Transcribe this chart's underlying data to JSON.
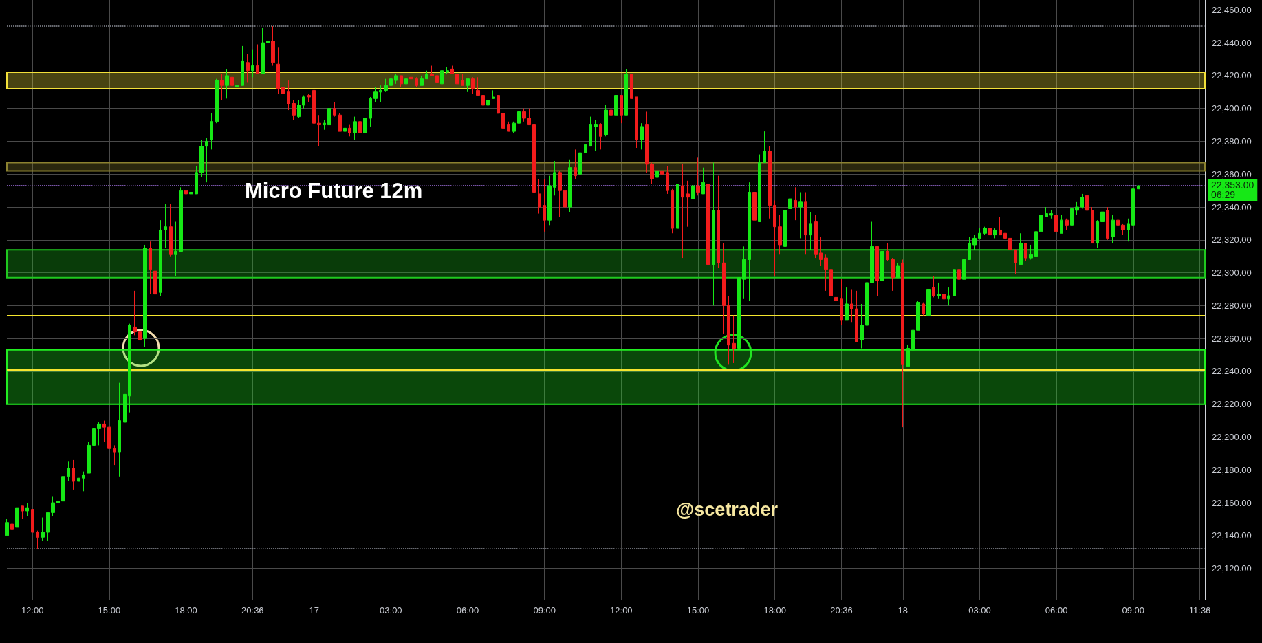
{
  "chart_data": {
    "type": "candlestick",
    "title": "Micro Future 12m",
    "annotations": [
      "@scetrader"
    ],
    "categories": [
      null,
      null,
      null,
      null,
      null,
      "12:00",
      null,
      null,
      null,
      null,
      null,
      null,
      null,
      null,
      null,
      null,
      null,
      null,
      null,
      null,
      "15:00",
      null,
      null,
      null,
      null,
      null,
      null,
      null,
      null,
      null,
      null,
      null,
      null,
      null,
      null,
      "18:00",
      null,
      null,
      null,
      null,
      null,
      null,
      null,
      null,
      null,
      null,
      null,
      null,
      "20:36",
      null,
      null,
      null,
      null,
      null,
      null,
      null,
      null,
      null,
      null,
      null,
      "17",
      null,
      null,
      null,
      null,
      null,
      null,
      null,
      null,
      null,
      null,
      null,
      null,
      null,
      null,
      "03:00",
      null,
      null,
      null,
      null,
      null,
      null,
      null,
      null,
      null,
      null,
      null,
      null,
      null,
      null,
      "06:00",
      null,
      null,
      null,
      null,
      null,
      null,
      null,
      null,
      null,
      null,
      null,
      null,
      null,
      null,
      "09:00",
      null,
      null,
      null,
      null,
      null,
      null,
      null,
      null,
      null,
      null,
      null,
      null,
      null,
      null,
      "12:00",
      null,
      null,
      null,
      null,
      null,
      null,
      null,
      null,
      null,
      null,
      null,
      null,
      null,
      null,
      "15:00",
      null,
      null,
      null,
      null,
      null,
      null,
      null,
      null,
      null,
      null,
      null,
      null,
      null,
      null,
      "18:00",
      null,
      null,
      null,
      null,
      null,
      null,
      null,
      null,
      null,
      null,
      null,
      null,
      "20:36",
      null,
      null,
      null,
      null,
      null,
      null,
      null,
      null,
      null,
      null,
      null,
      "18",
      null,
      null,
      null,
      null,
      null,
      null,
      null,
      null,
      null,
      null,
      null,
      null,
      null,
      null,
      "03:00",
      null,
      null,
      null,
      null,
      null,
      null,
      null,
      null,
      null,
      null,
      null,
      null,
      null,
      null,
      "06:00",
      null,
      null,
      null,
      null,
      null,
      null,
      null,
      null,
      null,
      null,
      null,
      null,
      null,
      null,
      "09:00",
      null,
      null,
      null,
      null,
      null,
      null,
      null,
      null,
      null,
      null,
      null,
      null,
      "11:36",
      null
    ],
    "ohlc": [
      [
        22140,
        22150,
        22140,
        22148
      ],
      [
        22147,
        22151,
        22142,
        22144
      ],
      [
        22145,
        22159,
        22141,
        22157
      ],
      [
        22158,
        22158,
        22150,
        22155
      ],
      [
        22155,
        22160,
        22152,
        22157
      ],
      [
        22156,
        22156,
        22139,
        22142
      ],
      [
        22142,
        22143,
        22132,
        22139
      ],
      [
        22139,
        22151,
        22137,
        22142
      ],
      [
        22142,
        22154,
        22137,
        22154
      ],
      [
        22154,
        22164,
        22152,
        22160
      ],
      [
        22160,
        22167,
        22156,
        22161
      ],
      [
        22161,
        22184,
        22161,
        22176
      ],
      [
        22176,
        22185,
        22173,
        22181
      ],
      [
        22181,
        22186,
        22168,
        22173
      ],
      [
        22173,
        22176,
        22167,
        22175
      ],
      [
        22175,
        22179,
        22167,
        22177
      ],
      [
        22178,
        22197,
        22178,
        22195
      ],
      [
        22195,
        22210,
        22195,
        22205
      ],
      [
        22205,
        22209,
        22195,
        22208
      ],
      [
        22208,
        22210,
        22197,
        22206
      ],
      [
        22206,
        22207,
        22184,
        22193
      ],
      [
        22193,
        22195,
        22183,
        22191
      ],
      [
        22191,
        22233,
        22176,
        22210
      ],
      [
        22209,
        22249,
        22194,
        22226
      ],
      [
        22225,
        22269,
        22215,
        22268
      ],
      [
        22267,
        22289,
        22262,
        22264
      ],
      [
        22264,
        22280,
        22221,
        22259
      ],
      [
        22260,
        22317,
        22255,
        22315
      ],
      [
        22315,
        22319,
        22287,
        22302
      ],
      [
        22301,
        22305,
        22280,
        22287
      ],
      [
        22288,
        22332,
        22286,
        22326
      ],
      [
        22326,
        22342,
        22315,
        22328
      ],
      [
        22328,
        22342,
        22310,
        22311
      ],
      [
        22311,
        22331,
        22298,
        22313
      ],
      [
        22313,
        22352,
        22313,
        22350
      ],
      [
        22350,
        22356,
        22333,
        22348
      ],
      [
        22348,
        22356,
        22338,
        22349
      ],
      [
        22348,
        22365,
        22348,
        22361
      ],
      [
        22361,
        22381,
        22358,
        22377
      ],
      [
        22377,
        22382,
        22355,
        22380
      ],
      [
        22381,
        22397,
        22375,
        22392
      ],
      [
        22392,
        22418,
        22391,
        22417
      ],
      [
        22417,
        22421,
        22405,
        22414
      ],
      [
        22414,
        22424,
        22406,
        22420
      ],
      [
        22419,
        22420,
        22407,
        22414
      ],
      [
        22413,
        22418,
        22401,
        22414
      ],
      [
        22414,
        22438,
        22414,
        22429
      ],
      [
        22428,
        22433,
        22416,
        22423
      ],
      [
        22423,
        22436,
        22419,
        22426
      ],
      [
        22426,
        22439,
        22421,
        22421
      ],
      [
        22421,
        22449,
        22421,
        22440
      ],
      [
        22440,
        22450,
        22432,
        22441
      ],
      [
        22441,
        22450,
        22426,
        22428
      ],
      [
        22427,
        22437,
        22409,
        22412
      ],
      [
        22413,
        22417,
        22394,
        22409
      ],
      [
        22410,
        22417,
        22399,
        22403
      ],
      [
        22403,
        22405,
        22393,
        22396
      ],
      [
        22395,
        22405,
        22394,
        22402
      ],
      [
        22402,
        22408,
        22400,
        22407
      ],
      [
        22408,
        22409,
        22404,
        22407
      ],
      [
        22411,
        22412,
        22386,
        22391
      ],
      [
        22391,
        22396,
        22377,
        22390
      ],
      [
        22390,
        22393,
        22387,
        22391
      ],
      [
        22390,
        22400,
        22390,
        22400
      ],
      [
        22400,
        22404,
        22395,
        22396
      ],
      [
        22396,
        22397,
        22386,
        22386
      ],
      [
        22386,
        22390,
        22385,
        22388
      ],
      [
        22388,
        22390,
        22383,
        22385
      ],
      [
        22385,
        22395,
        22381,
        22392
      ],
      [
        22392,
        22393,
        22383,
        22385
      ],
      [
        22385,
        22396,
        22379,
        22394
      ],
      [
        22394,
        22407,
        22389,
        22406
      ],
      [
        22406,
        22413,
        22404,
        22410
      ],
      [
        22410,
        22414,
        22404,
        22411
      ],
      [
        22411,
        22418,
        22410,
        22414
      ],
      [
        22414,
        22423,
        22413,
        22418
      ],
      [
        22417,
        22421,
        22415,
        22420
      ],
      [
        22420,
        22420,
        22413,
        22415
      ],
      [
        22415,
        22420,
        22411,
        22418
      ],
      [
        22419,
        22422,
        22416,
        22418
      ],
      [
        22418,
        22419,
        22413,
        22414
      ],
      [
        22414,
        22420,
        22414,
        22418
      ],
      [
        22418,
        22423,
        22418,
        22421
      ],
      [
        22421,
        22426,
        22420,
        22420
      ],
      [
        22420,
        22420,
        22413,
        22416
      ],
      [
        22415,
        22424,
        22415,
        22423
      ],
      [
        22422,
        22425,
        22421,
        22423
      ],
      [
        22424,
        22426,
        22421,
        22421
      ],
      [
        22421,
        22422,
        22415,
        22415
      ],
      [
        22417,
        22421,
        22414,
        22414
      ],
      [
        22414,
        22418,
        22410,
        22418
      ],
      [
        22418,
        22419,
        22409,
        22412
      ],
      [
        22411,
        22419,
        22408,
        22408
      ],
      [
        22408,
        22410,
        22402,
        22402
      ],
      [
        22402,
        22408,
        22401,
        22405
      ],
      [
        22406,
        22411,
        22406,
        22407
      ],
      [
        22408,
        22408,
        22397,
        22397
      ],
      [
        22397,
        22400,
        22385,
        22388
      ],
      [
        22390,
        22392,
        22386,
        22386
      ],
      [
        22386,
        22392,
        22385,
        22391
      ],
      [
        22391,
        22401,
        22390,
        22398
      ],
      [
        22398,
        22400,
        22392,
        22394
      ],
      [
        22394,
        22400,
        22390,
        22390
      ],
      [
        22390,
        22390,
        22342,
        22349
      ],
      [
        22348,
        22357,
        22336,
        22340
      ],
      [
        22341,
        22357,
        22325,
        22332
      ],
      [
        22332,
        22359,
        22329,
        22353
      ],
      [
        22352,
        22368,
        22347,
        22361
      ],
      [
        22361,
        22362,
        22334,
        22350
      ],
      [
        22350,
        22356,
        22337,
        22340
      ],
      [
        22340,
        22369,
        22337,
        22364
      ],
      [
        22364,
        22375,
        22357,
        22359
      ],
      [
        22360,
        22377,
        22354,
        22373
      ],
      [
        22373,
        22384,
        22370,
        22378
      ],
      [
        22377,
        22395,
        22377,
        22390
      ],
      [
        22389,
        22393,
        22374,
        22390
      ],
      [
        22390,
        22391,
        22375,
        22383
      ],
      [
        22384,
        22402,
        22383,
        22399
      ],
      [
        22399,
        22407,
        22394,
        22396
      ],
      [
        22396,
        22411,
        22396,
        22408
      ],
      [
        22408,
        22408,
        22391,
        22396
      ],
      [
        22396,
        22424,
        22396,
        22421
      ],
      [
        22421,
        22422,
        22404,
        22406
      ],
      [
        22407,
        22407,
        22376,
        22381
      ],
      [
        22381,
        22391,
        22375,
        22389
      ],
      [
        22390,
        22398,
        22361,
        22366
      ],
      [
        22366,
        22367,
        22354,
        22357
      ],
      [
        22358,
        22371,
        22356,
        22362
      ],
      [
        22362,
        22368,
        22351,
        22360
      ],
      [
        22361,
        22365,
        22348,
        22350
      ],
      [
        22350,
        22351,
        22324,
        22327
      ],
      [
        22327,
        22354,
        22327,
        22354
      ],
      [
        22353,
        22366,
        22309,
        22346
      ],
      [
        22348,
        22356,
        22328,
        22346
      ],
      [
        22345,
        22359,
        22333,
        22353
      ],
      [
        22353,
        22370,
        22347,
        22349
      ],
      [
        22348,
        22364,
        22348,
        22355
      ],
      [
        22354,
        22354,
        22288,
        22305
      ],
      [
        22305,
        22367,
        22280,
        22338
      ],
      [
        22338,
        22359,
        22303,
        22306
      ],
      [
        22306,
        22318,
        22263,
        22280
      ],
      [
        22280,
        22286,
        22244,
        22256
      ],
      [
        22257,
        22274,
        22245,
        22254
      ],
      [
        22254,
        22305,
        22250,
        22297
      ],
      [
        22296,
        22316,
        22284,
        22308
      ],
      [
        22308,
        22355,
        22283,
        22349
      ],
      [
        22349,
        22357,
        22324,
        22332
      ],
      [
        22331,
        22372,
        22331,
        22367
      ],
      [
        22367,
        22386,
        22367,
        22374
      ],
      [
        22374,
        22377,
        22333,
        22341
      ],
      [
        22341,
        22344,
        22298,
        22328
      ],
      [
        22328,
        22335,
        22311,
        22317
      ],
      [
        22316,
        22346,
        22309,
        22338
      ],
      [
        22339,
        22359,
        22331,
        22345
      ],
      [
        22344,
        22352,
        22332,
        22340
      ],
      [
        22340,
        22349,
        22321,
        22343
      ],
      [
        22343,
        22349,
        22311,
        22323
      ],
      [
        22323,
        22337,
        22314,
        22330
      ],
      [
        22331,
        22335,
        22309,
        22311
      ],
      [
        22312,
        22322,
        22304,
        22308
      ],
      [
        22309,
        22311,
        22289,
        22302
      ],
      [
        22302,
        22307,
        22283,
        22286
      ],
      [
        22285,
        22292,
        22273,
        22283
      ],
      [
        22284,
        22296,
        22268,
        22271
      ],
      [
        22271,
        22291,
        22271,
        22281
      ],
      [
        22281,
        22290,
        22270,
        22278
      ],
      [
        22278,
        22289,
        22258,
        22258
      ],
      [
        22259,
        22281,
        22254,
        22268
      ],
      [
        22268,
        22317,
        22267,
        22294
      ],
      [
        22294,
        22331,
        22294,
        22316
      ],
      [
        22316,
        22316,
        22286,
        22295
      ],
      [
        22295,
        22315,
        22289,
        22313
      ],
      [
        22313,
        22318,
        22307,
        22308
      ],
      [
        22308,
        22309,
        22289,
        22297
      ],
      [
        22297,
        22306,
        22297,
        22304
      ],
      [
        22306,
        22308,
        22206,
        22244
      ],
      [
        22243,
        22256,
        22243,
        22254
      ],
      [
        22253,
        22268,
        22247,
        22265
      ],
      [
        22265,
        22283,
        22265,
        22282
      ],
      [
        22281,
        22282,
        22274,
        22275
      ],
      [
        22274,
        22297,
        22272,
        22290
      ],
      [
        22291,
        22298,
        22285,
        22286
      ],
      [
        22286,
        22294,
        22284,
        22287
      ],
      [
        22287,
        22290,
        22282,
        22284
      ],
      [
        22284,
        22291,
        22280,
        22286
      ],
      [
        22286,
        22302,
        22286,
        22302
      ],
      [
        22302,
        22302,
        22293,
        22296
      ],
      [
        22296,
        22309,
        22295,
        22308
      ],
      [
        22308,
        22322,
        22308,
        22318
      ],
      [
        22317,
        22323,
        22314,
        22321
      ],
      [
        22321,
        22327,
        22321,
        22324
      ],
      [
        22324,
        22328,
        22323,
        22327
      ],
      [
        22327,
        22329,
        22322,
        22323
      ],
      [
        22323,
        22327,
        22321,
        22326
      ],
      [
        22326,
        22334,
        22323,
        22323
      ],
      [
        22324,
        22325,
        22320,
        22321
      ],
      [
        22321,
        22322,
        22312,
        22314
      ],
      [
        22314,
        22314,
        22299,
        22306
      ],
      [
        22305,
        22324,
        22305,
        22318
      ],
      [
        22318,
        22318,
        22307,
        22309
      ],
      [
        22309,
        22317,
        22308,
        22311
      ],
      [
        22310,
        22325,
        22309,
        22325
      ],
      [
        22325,
        22339,
        22325,
        22335
      ],
      [
        22334,
        22340,
        22334,
        22336
      ],
      [
        22335,
        22338,
        22333,
        22336
      ],
      [
        22335,
        22335,
        22323,
        22325
      ],
      [
        22324,
        22335,
        22324,
        22332
      ],
      [
        22332,
        22333,
        22326,
        22329
      ],
      [
        22329,
        22339,
        22329,
        22339
      ],
      [
        22338,
        22343,
        22335,
        22340
      ],
      [
        22340,
        22348,
        22339,
        22346
      ],
      [
        22347,
        22348,
        22338,
        22338
      ],
      [
        22338,
        22340,
        22318,
        22318
      ],
      [
        22318,
        22332,
        22315,
        22331
      ],
      [
        22331,
        22338,
        22327,
        22337
      ],
      [
        22338,
        22340,
        22320,
        22321
      ],
      [
        22322,
        22335,
        22318,
        22332
      ],
      [
        22332,
        22333,
        22328,
        22329
      ],
      [
        22329,
        22330,
        22323,
        22326
      ],
      [
        22326,
        22333,
        22319,
        22330
      ],
      [
        22329,
        22353,
        22329,
        22351
      ],
      [
        22351,
        22356,
        22350,
        22353
      ],
      null,
      null,
      null,
      null,
      null,
      null,
      null,
      null,
      null,
      null,
      null,
      null,
      null
    ],
    "colors": [
      "#16e816",
      "#f21c1c",
      "#16e816",
      "#f21c1c",
      "#16e816",
      "#f21c1c",
      "#f21c1c",
      "#16e816",
      "#16e816",
      "#16e816",
      "#16e816",
      "#16e816",
      "#16e816",
      "#f21c1c",
      "#16e816",
      "#16e816",
      "#16e816",
      "#16e816",
      "#16e816",
      "#f21c1c",
      "#f21c1c",
      "#f21c1c",
      "#16e816",
      "#16e816",
      "#16e816",
      "#f21c1c",
      "#f21c1c",
      "#16e816",
      "#f21c1c",
      "#f21c1c",
      "#16e816",
      "#16e816",
      "#f21c1c",
      "#16e816",
      "#16e816",
      "#f21c1c",
      "#16e816",
      "#16e816",
      "#16e816",
      "#16e816",
      "#16e816",
      "#16e816",
      "#f21c1c",
      "#16e816",
      "#f21c1c",
      "#16e816",
      "#16e816",
      "#f21c1c",
      "#16e816",
      "#f21c1c",
      "#16e816",
      "#16e816",
      "#f21c1c",
      "#f21c1c",
      "#f21c1c",
      "#f21c1c",
      "#f21c1c",
      "#16e816",
      "#16e816",
      "#f21c1c",
      "#f21c1c",
      "#f21c1c",
      "#16e816",
      "#16e816",
      "#f21c1c",
      "#f21c1c",
      "#16e816",
      "#f21c1c",
      "#16e816",
      "#f21c1c",
      "#16e816",
      "#16e816",
      "#16e816",
      "#16e816",
      "#16e816",
      "#16e816",
      "#16e816",
      "#f21c1c",
      "#16e816",
      "#f21c1c",
      "#f21c1c",
      "#16e816",
      "#16e816",
      "#f21c1c",
      "#f21c1c",
      "#16e816",
      "#16e816",
      "#f21c1c",
      "#f21c1c",
      "#f21c1c",
      "#16e816",
      "#f21c1c",
      "#f21c1c",
      "#f21c1c",
      "#16e816",
      "#16e816",
      "#f21c1c",
      "#f21c1c",
      "#f21c1c",
      "#16e816",
      "#16e816",
      "#f21c1c",
      "#f21c1c",
      "#f21c1c",
      "#f21c1c",
      "#f21c1c",
      "#16e816",
      "#16e816",
      "#f21c1c",
      "#f21c1c",
      "#16e816",
      "#f21c1c",
      "#16e816",
      "#16e816",
      "#16e816",
      "#16e816",
      "#f21c1c",
      "#16e816",
      "#f21c1c",
      "#16e816",
      "#f21c1c",
      "#16e816",
      "#f21c1c",
      "#f21c1c",
      "#16e816",
      "#f21c1c",
      "#f21c1c",
      "#16e816",
      "#f21c1c",
      "#f21c1c",
      "#f21c1c",
      "#16e816",
      "#f21c1c",
      "#f21c1c",
      "#16e816",
      "#f21c1c",
      "#16e816",
      "#f21c1c",
      "#16e816",
      "#f21c1c",
      "#f21c1c",
      "#f21c1c",
      "#f21c1c",
      "#16e816",
      "#16e816",
      "#16e816",
      "#f21c1c",
      "#16e816",
      "#16e816",
      "#f21c1c",
      "#f21c1c",
      "#f21c1c",
      "#16e816",
      "#16e816",
      "#f21c1c",
      "#16e816",
      "#f21c1c",
      "#16e816",
      "#f21c1c",
      "#f21c1c",
      "#f21c1c",
      "#f21c1c",
      "#f21c1c",
      "#f21c1c",
      "#16e816",
      "#f21c1c",
      "#f21c1c",
      "#16e816",
      "#16e816",
      "#16e816",
      "#f21c1c",
      "#16e816",
      "#f21c1c",
      "#f21c1c",
      "#16e816",
      "#f21c1c",
      "#16e816",
      "#16e816",
      "#16e816",
      "#f21c1c",
      "#16e816",
      "#f21c1c",
      "#16e816",
      "#f21c1c",
      "#16e816",
      "#16e816",
      "#f21c1c",
      "#16e816",
      "#16e816",
      "#16e816",
      "#16e816",
      "#16e816",
      "#f21c1c",
      "#16e816",
      "#f21c1c",
      "#f21c1c",
      "#f21c1c",
      "#f21c1c",
      "#16e816",
      "#f21c1c",
      "#16e816",
      "#16e816",
      "#16e816",
      "#16e816",
      "#16e816",
      "#f21c1c",
      "#16e816",
      "#f21c1c",
      "#16e816",
      "#16e816",
      "#16e816",
      "#f21c1c",
      "#f21c1c",
      "#16e816",
      "#16e816",
      "#f21c1c",
      "#16e816",
      "#f21c1c",
      "#f21c1c",
      "#16e816",
      "#16e816",
      "#16e816",
      null,
      null,
      null,
      null,
      null,
      null,
      null,
      null,
      null,
      null,
      null,
      null,
      null
    ],
    "ylim": [
      22101,
      22466
    ],
    "yticks": [
      {
        "value": 22120,
        "label": "22,120.00"
      },
      {
        "value": 22140,
        "label": "22,140.00"
      },
      {
        "value": 22160,
        "label": "22,160.00"
      },
      {
        "value": 22180,
        "label": "22,180.00"
      },
      {
        "value": 22200,
        "label": "22,200.00"
      },
      {
        "value": 22220,
        "label": "22,220.00"
      },
      {
        "value": 22240,
        "label": "22,240.00"
      },
      {
        "value": 22260,
        "label": "22,260.00"
      },
      {
        "value": 22280,
        "label": "22,280.00"
      },
      {
        "value": 22300,
        "label": "22,300.00"
      },
      {
        "value": 22320,
        "label": "22,320.00"
      },
      {
        "value": 22340,
        "label": "22,340.00"
      },
      {
        "value": 22360,
        "label": "22,360.00"
      },
      {
        "value": 22380,
        "label": "22,380.00"
      },
      {
        "value": 22400,
        "label": "22,400.00"
      },
      {
        "value": 22420,
        "label": "22,420.00"
      },
      {
        "value": 22440,
        "label": "22,440.00"
      },
      {
        "value": 22460,
        "label": "22,460.00"
      }
    ],
    "grid": true,
    "bands": [
      {
        "axis": "y",
        "from": 22412,
        "to": 22422,
        "color": "#f2e03a"
      },
      {
        "axis": "y",
        "from": 22362,
        "to": 22367,
        "color": "#8c8230"
      },
      {
        "axis": "y",
        "from": 22297,
        "to": 22314,
        "color": "#1fc81f"
      },
      {
        "axis": "y",
        "from": 22220,
        "to": 22253,
        "color": "#22ee22"
      }
    ],
    "ref_lines": [
      {
        "axis": "y",
        "value": 22450,
        "line_style": "dotted",
        "color": "#8a8d96"
      },
      {
        "axis": "y",
        "value": 22353,
        "label": "22,353.00\n06:29",
        "line_style": "dotted",
        "color": "#a070e0"
      },
      {
        "axis": "y",
        "value": 22274,
        "line_style": "solid",
        "color": "#f5e62e"
      },
      {
        "axis": "y",
        "value": 22241,
        "line_style": "solid",
        "color": "#f5e62e"
      },
      {
        "axis": "y",
        "value": 22132,
        "line_style": "dotted",
        "color": "#8a8d96"
      }
    ]
  }
}
